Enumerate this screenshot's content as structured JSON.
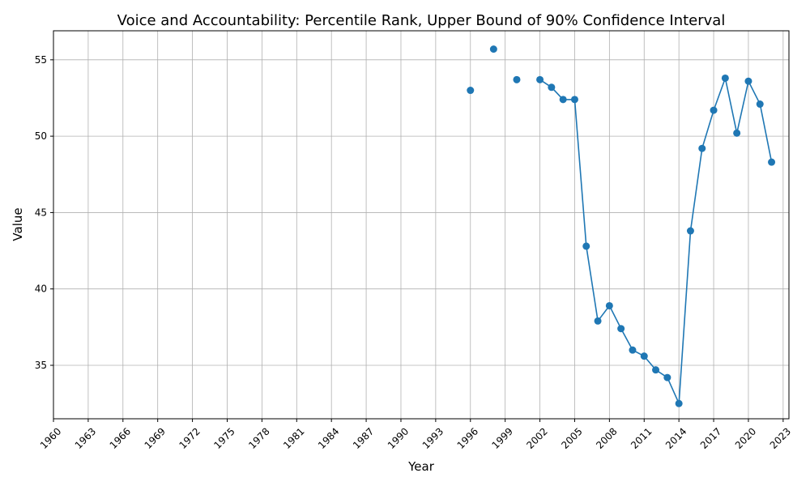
{
  "chart_data": {
    "type": "line",
    "title": "Voice and Accountability: Percentile Rank, Upper Bound of 90% Confidence Interval",
    "xlabel": "Year",
    "ylabel": "Value",
    "xlim": [
      1960,
      2023.5
    ],
    "ylim": [
      31.5,
      56.9
    ],
    "x_ticks": [
      1960,
      1963,
      1966,
      1969,
      1972,
      1975,
      1978,
      1981,
      1984,
      1987,
      1990,
      1993,
      1996,
      1999,
      2002,
      2005,
      2008,
      2011,
      2014,
      2017,
      2020,
      2023
    ],
    "y_ticks": [
      35,
      40,
      45,
      50,
      55
    ],
    "grid": true,
    "line_color": "#1f77b4",
    "marker": "circle",
    "series": [
      {
        "x": [
          1996,
          1998,
          2000,
          2002,
          2003,
          2004,
          2005,
          2006,
          2007,
          2008,
          2009,
          2010,
          2011,
          2012,
          2013,
          2014,
          2015,
          2016,
          2017,
          2018,
          2019,
          2020,
          2021,
          2022
        ],
        "values": [
          53.0,
          55.7,
          53.7,
          53.7,
          53.2,
          52.4,
          52.4,
          42.8,
          37.9,
          38.9,
          37.4,
          36.0,
          35.6,
          34.7,
          34.2,
          32.5,
          43.8,
          49.2,
          51.7,
          53.8,
          50.2,
          53.6,
          52.1,
          48.3
        ],
        "connected_from_index": 3
      }
    ]
  }
}
